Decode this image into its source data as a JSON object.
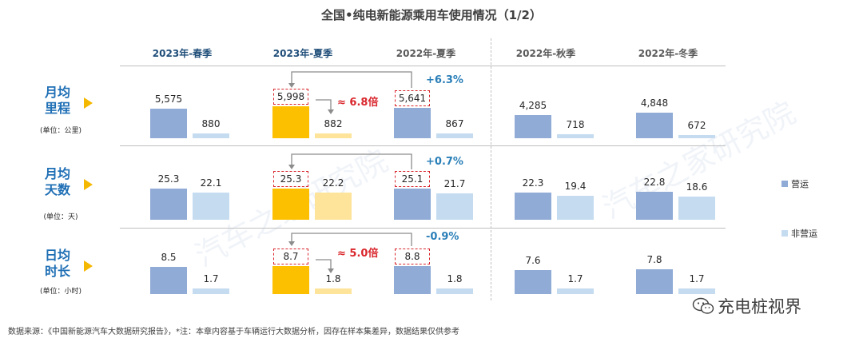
{
  "header": {
    "title": "全国•纯电新能源乘用车使用情况（1/2）"
  },
  "columns": [
    {
      "label": "2023年-春季",
      "color": "#1f4e79"
    },
    {
      "label": "2023年-夏季",
      "color": "#1f4e79"
    },
    {
      "label": "2022年-夏季",
      "color": "#595959"
    },
    {
      "label": "2022年-秋季",
      "color": "#595959"
    },
    {
      "label": "2022年-冬季",
      "color": "#595959"
    }
  ],
  "rows": [
    {
      "label_line1": "月均",
      "label_line2": "里程",
      "unit": "(单位：公里)"
    },
    {
      "label_line1": "月均",
      "label_line2": "天数",
      "unit": "(单位：天)"
    },
    {
      "label_line1": "日均",
      "label_line2": "时长",
      "unit": "(单位：小时)"
    }
  ],
  "legend": [
    {
      "label": "营运",
      "color": "#8fabd6"
    },
    {
      "label": "非营运",
      "color": "#c5dcf0"
    }
  ],
  "annotations": {
    "mileage_ratio": "≈ 6.8倍",
    "mileage_growth": "+6.3%",
    "days_growth": "+0.7%",
    "hours_ratio": "≈ 5.0倍",
    "hours_growth": "-0.9%"
  },
  "footnote": "数据来源：《中国新能源汽车大数据研究报告》，*注：本章内容基于车辆运行大数据分析，因存在样本集差异，数据结果仅供参考",
  "watermark": "汽车之家研究院",
  "brand": "充电桩视界",
  "colors": {
    "operating": "#8fabd6",
    "non_operating": "#c5dcf0",
    "highlight_operating": "#fcc000",
    "highlight_non_operating": "#fde49a",
    "accent_red": "#d9262c",
    "accent_blue": "#2a7fb8",
    "row_label_blue": "#1f6fb5",
    "arrow_yellow": "#f5b800"
  },
  "chart_data": {
    "type": "bar",
    "title": "全国•纯电新能源乘用车使用情况（1/2）",
    "categories": [
      "2023年-春季",
      "2023年-夏季",
      "2022年-夏季",
      "2022年-秋季",
      "2022年-冬季"
    ],
    "legend_position": "right",
    "grid": false,
    "panels": [
      {
        "name": "月均里程",
        "unit": "公里",
        "ylim": [
          0,
          6000
        ],
        "series": [
          {
            "name": "营运",
            "values": [
              5575,
              5998,
              5641,
              4285,
              4848
            ],
            "labels": [
              "5,575",
              "5,998",
              "5,641",
              "4,285",
              "4,848"
            ]
          },
          {
            "name": "非营运",
            "values": [
              880,
              882,
              867,
              718,
              672
            ],
            "labels": [
              "880",
              "882",
              "867",
              "718",
              "672"
            ]
          }
        ]
      },
      {
        "name": "月均天数",
        "unit": "天",
        "ylim": [
          0,
          26
        ],
        "series": [
          {
            "name": "营运",
            "values": [
              25.3,
              25.3,
              25.1,
              22.3,
              22.8
            ],
            "labels": [
              "25.3",
              "25.3",
              "25.1",
              "22.3",
              "22.8"
            ]
          },
          {
            "name": "非营运",
            "values": [
              22.1,
              22.2,
              21.7,
              19.4,
              18.6
            ],
            "labels": [
              "22.1",
              "22.2",
              "21.7",
              "19.4",
              "18.6"
            ]
          }
        ]
      },
      {
        "name": "日均时长",
        "unit": "小时",
        "ylim": [
          0,
          9
        ],
        "series": [
          {
            "name": "营运",
            "values": [
              8.5,
              8.7,
              8.8,
              7.6,
              7.8
            ],
            "labels": [
              "8.5",
              "8.7",
              "8.8",
              "7.6",
              "7.8"
            ]
          },
          {
            "name": "非营运",
            "values": [
              1.7,
              1.8,
              1.8,
              1.7,
              1.7
            ],
            "labels": [
              "1.7",
              "1.8",
              "1.8",
              "1.7",
              "1.7"
            ]
          }
        ]
      }
    ]
  }
}
